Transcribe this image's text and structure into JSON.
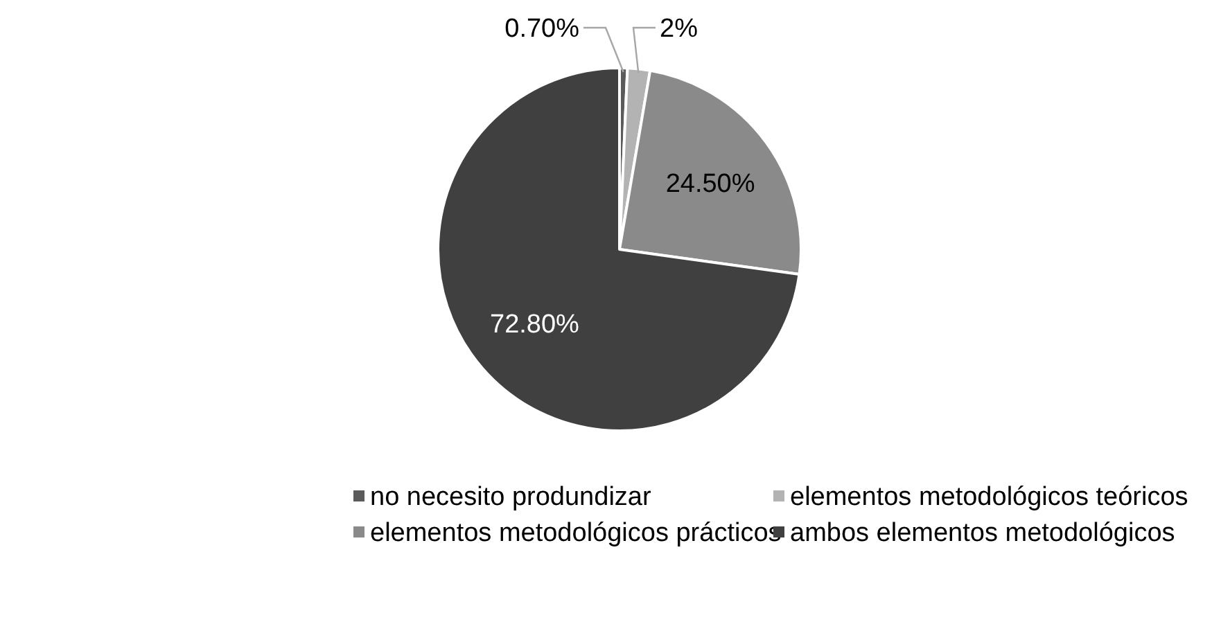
{
  "chart_data": {
    "type": "pie",
    "categories": [
      "no necesito produndizar",
      "elementos metodológicos teóricos",
      "elementos metodológicos prácticos",
      "ambos elementos metodológicos"
    ],
    "values": [
      0.7,
      2,
      24.5,
      72.8
    ],
    "colors": [
      "#5b5b5b",
      "#b3b3b3",
      "#8a8a8a",
      "#404040"
    ],
    "value_labels": [
      "0.70%",
      "2%",
      "24.50%",
      "72.80%"
    ],
    "legend": "bottom"
  }
}
